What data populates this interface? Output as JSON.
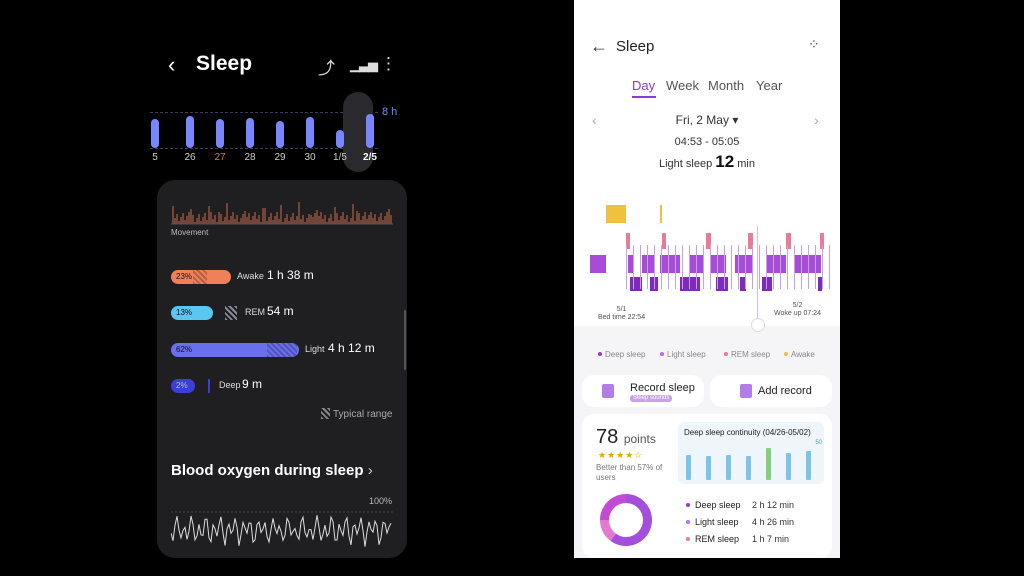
{
  "left": {
    "title": "Sleep",
    "back_icon": "‹",
    "share_icon": "⤴",
    "chart_icon": "▮",
    "more_icon": "⋮",
    "goal_label": "8 h",
    "week": {
      "labels": [
        "5",
        "26",
        "27",
        "28",
        "29",
        "30",
        "1/5",
        "2/5"
      ],
      "selected": "2/5",
      "highlight": "27",
      "hours": [
        6.5,
        7.2,
        6.4,
        6.6,
        6.1,
        6.9,
        4.0,
        7.5
      ]
    },
    "movement_label": "Movement",
    "stages": [
      {
        "pct": "23%",
        "name": "Awake",
        "value": "1 h 38 m",
        "color": "#f0805a"
      },
      {
        "pct": "13%",
        "name": "REM",
        "value": "54 m",
        "color": "#5ac7f0"
      },
      {
        "pct": "62%",
        "name": "Light",
        "value": "4 h 12 m",
        "color": "#6a6ff0"
      },
      {
        "pct": "2%",
        "name": "Deep",
        "value": "9 m",
        "color": "#3a3fd8"
      }
    ],
    "typical_range": "Typical range",
    "blood_oxygen_title": "Blood oxygen during sleep",
    "blood_oxygen_chevron": "›",
    "pct_100": "100%"
  },
  "right": {
    "title": "Sleep",
    "back_icon": "←",
    "menu_icon": "⁚⁚",
    "tabs": [
      "Day",
      "Week",
      "Month",
      "Year"
    ],
    "active_tab": "Day",
    "date": "Fri, 2 May ▾",
    "prev_icon": "‹",
    "next_icon": "›",
    "time_range": "04:53 - 05:05",
    "stage_focus_label": "Light sleep",
    "stage_focus_value": "12",
    "stage_focus_unit": "min",
    "bed_date": "5/1",
    "bed_time": "Bed time 22:54",
    "wake_date": "5/2",
    "wake_time": "Woke up 07:24",
    "legend": [
      {
        "label": "Deep sleep",
        "color": "#9a38c8"
      },
      {
        "label": "Light sleep",
        "color": "#c06ae6"
      },
      {
        "label": "REM sleep",
        "color": "#e87a9a"
      },
      {
        "label": "Awake",
        "color": "#f0c040"
      }
    ],
    "record_sleep": "Record sleep",
    "sleep_sounds": "Sleep sounds",
    "add_record": "Add record",
    "score": "78",
    "score_unit": "points",
    "stars": "★★★★☆",
    "better_than": "Better than 57% of users",
    "continuity_title": "Deep sleep continuity (04/26-05/02)",
    "continuity_max": "50",
    "continuity_values": [
      33,
      32,
      33,
      31,
      42,
      36,
      38
    ],
    "breakdown": [
      {
        "label": "Deep sleep",
        "value": "2 h 12 min",
        "color": "#9a38c8"
      },
      {
        "label": "Light sleep",
        "value": "4 h 26 min",
        "color": "#c06ae6"
      },
      {
        "label": "REM sleep",
        "value": "1 h 7 min",
        "color": "#e87a9a"
      }
    ]
  }
}
